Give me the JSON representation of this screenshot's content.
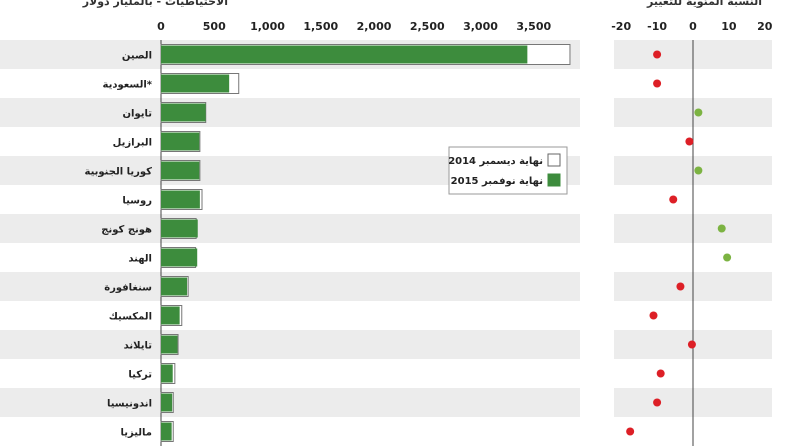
{
  "chart_data": [
    {
      "type": "bar",
      "title": "الاحتياطيات - بالمليار دولار",
      "categories": [
        "الصين",
        "السعودية*",
        "تايوان",
        "البرازيل",
        "كوريا الجنوبية",
        "روسيا",
        "هونج كونج",
        "الهند",
        "سنغافورة",
        "المكسيك",
        "تايلاند",
        "تركيا",
        "اندونيسيا",
        "ماليزيا"
      ],
      "xlim": [
        0,
        3750
      ],
      "x_ticks": [
        0,
        500,
        1000,
        1500,
        2000,
        2500,
        3000,
        3500
      ],
      "x_tick_labels": [
        "0",
        "500",
        "1,000",
        "1,500",
        "2,000",
        "2,500",
        "3,000",
        "3,500"
      ],
      "series": [
        {
          "name": "نهاية ديسمبر 2014",
          "color": "#ffffff",
          "values": [
            3840,
            730,
            420,
            365,
            365,
            385,
            330,
            325,
            255,
            195,
            160,
            130,
            115,
            115
          ]
        },
        {
          "name": "نهاية نوفمبر 2015",
          "color": "#3d8c3d",
          "values": [
            3440,
            640,
            420,
            360,
            360,
            365,
            345,
            340,
            245,
            175,
            155,
            110,
            105,
            100
          ]
        }
      ],
      "legend_position": "center-right",
      "grid": false
    },
    {
      "type": "scatter",
      "title": "النسبة المئوية للتغيير",
      "categories": [
        "الصين",
        "السعودية*",
        "تايوان",
        "البرازيل",
        "كوريا الجنوبية",
        "روسيا",
        "هونج كونج",
        "الهند",
        "سنغافورة",
        "المكسيك",
        "تايلاند",
        "تركيا",
        "اندونيسيا",
        "ماليزيا"
      ],
      "xlim": [
        -22,
        22
      ],
      "x_ticks": [
        -20,
        -10,
        0,
        10,
        20
      ],
      "x_tick_labels": [
        "-20",
        "-10",
        "0",
        "10",
        "20"
      ],
      "values": [
        -10,
        -10,
        1.5,
        -1,
        1.5,
        -5.5,
        8,
        9.5,
        -3.5,
        -11,
        -0.3,
        -9,
        -10,
        -17.5
      ],
      "positive_color": "#7cb342",
      "negative_color": "#dd1f26"
    }
  ]
}
